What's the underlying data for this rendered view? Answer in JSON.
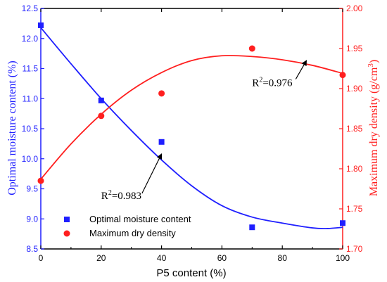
{
  "chart_data": {
    "type": "scatter",
    "xlabel": "P5 content (%)",
    "ylabel_left": "Optimal moisture content (%)",
    "ylabel_right_prefix": "Maximum dry density (g/cm",
    "ylabel_right_sup": "3",
    "ylabel_right_suffix": ")",
    "xlim": [
      0,
      100
    ],
    "ylim_left": [
      8.5,
      12.5
    ],
    "ylim_right": [
      1.7,
      2.0
    ],
    "x_ticks": [
      0,
      20,
      40,
      60,
      80,
      100
    ],
    "y_left_ticks": [
      8.5,
      9.0,
      9.5,
      10.0,
      10.5,
      11.0,
      11.5,
      12.0,
      12.5
    ],
    "y_right_ticks": [
      1.7,
      1.75,
      1.8,
      1.85,
      1.9,
      1.95,
      2.0
    ],
    "legend_position": "bottom-left",
    "series": [
      {
        "name": "Optimal moisture content",
        "axis": "left",
        "marker": "square",
        "color": "#1f1fff",
        "x": [
          0,
          20,
          40,
          70,
          100
        ],
        "y": [
          12.22,
          10.97,
          10.28,
          8.86,
          8.93
        ],
        "fit_x": [
          0,
          10,
          20,
          30,
          40,
          50,
          60,
          70,
          80,
          90,
          95,
          100
        ],
        "fit_y": [
          12.18,
          11.58,
          11.0,
          10.47,
          9.98,
          9.55,
          9.22,
          9.03,
          8.93,
          8.85,
          8.84,
          8.86
        ]
      },
      {
        "name": "Maximum dry density",
        "axis": "right",
        "marker": "circle",
        "color": "#ff1f1f",
        "x": [
          0,
          20,
          40,
          70,
          100
        ],
        "y": [
          1.785,
          1.866,
          1.894,
          1.95,
          1.917
        ],
        "fit_x": [
          0,
          10,
          20,
          30,
          40,
          50,
          60,
          70,
          80,
          90,
          100
        ],
        "fit_y": [
          1.787,
          1.831,
          1.868,
          1.898,
          1.92,
          1.935,
          1.941,
          1.94,
          1.936,
          1.929,
          1.919
        ]
      }
    ],
    "annotations": [
      {
        "id": "r2-moisture",
        "base": "R",
        "sup": "2",
        "rest": "=0.983",
        "text_at": [
          20,
          9.33
        ],
        "arrow_to": [
          40,
          10.08
        ],
        "axis": "left"
      },
      {
        "id": "r2-density",
        "base": "R",
        "sup": "2",
        "rest": "=0.976",
        "text_at": [
          70,
          1.903
        ],
        "arrow_to": [
          88,
          1.935
        ],
        "axis": "right"
      }
    ],
    "colors": {
      "left_axis": "#1f1fff",
      "right_axis": "#ff1f1f",
      "frame": "#000000"
    }
  }
}
